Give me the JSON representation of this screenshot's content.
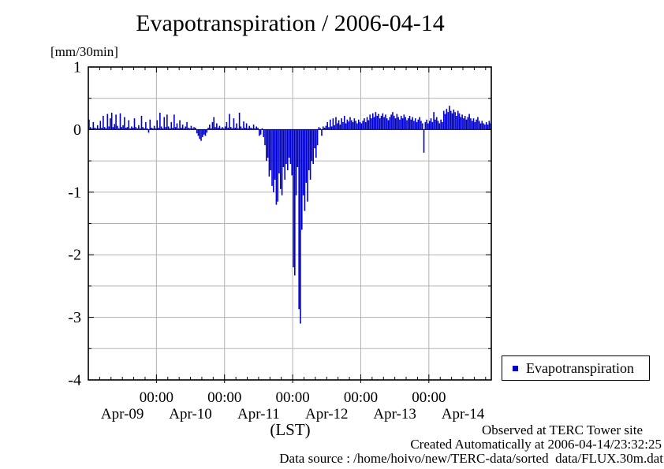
{
  "title": "Evapotranspiration / 2006-04-14",
  "legend": {
    "label": "Evapotranspiration",
    "marker_color": "#0000cc"
  },
  "footer": {
    "line1": "Observed at TERC Tower site",
    "line2": "Created Automatically at 2006-04-14/23:32:25",
    "line3": "Data source : /home/hoivo/new/TERC-data/sorted  data/FLUX.30m.dat"
  },
  "chart_data": {
    "type": "bar",
    "title": "Evapotranspiration / 2006-04-14",
    "ylabel": "[mm/30min]",
    "xlabel": "(LST)",
    "ylim": [
      -4,
      1
    ],
    "y_tick_values": [
      1,
      0,
      -1,
      -2,
      -3,
      -4
    ],
    "y_tick_labels": [
      "1",
      "0",
      "-1",
      "-2",
      "-3",
      "-4"
    ],
    "x_major_tick_labels": [
      "00:00",
      "00:00",
      "00:00",
      "00:00",
      "00:00"
    ],
    "x_day_labels": [
      "Apr-09",
      "Apr-10",
      "Apr-11",
      "Apr-12",
      "Apr-13",
      "Apr-14"
    ],
    "grid": true,
    "legend_position": "outside-bottom-right",
    "bar_color": "#0000cc",
    "grid_color": "#b3b3b3",
    "start": "2006-04-09 00:00",
    "interval_minutes": 30,
    "points_per_day": 48,
    "values": [
      0.16,
      0.04,
      0.02,
      0.12,
      0.03,
      0.02,
      0.07,
      0.02,
      0.14,
      0.03,
      0.22,
      0.04,
      0.02,
      0.25,
      0.05,
      0.18,
      0.27,
      0.04,
      0.09,
      0.24,
      0.06,
      0.02,
      0.26,
      0.04,
      0.07,
      0.2,
      0.03,
      0.04,
      0.15,
      0.02,
      0.05,
      0.03,
      0.18,
      0.04,
      0.02,
      0.07,
      0.02,
      0.22,
      0.04,
      0.02,
      0.12,
      0.02,
      -0.05,
      0.16,
      0.03,
      0.02,
      0.06,
      0.02,
      0.15,
      0.03,
      0.27,
      0.05,
      0.02,
      0.2,
      0.04,
      0.24,
      0.05,
      0.02,
      0.12,
      0.03,
      0.24,
      0.04,
      0.1,
      0.02,
      0.15,
      0.03,
      0.08,
      0.02,
      0.05,
      0.12,
      0.03,
      0.02,
      0.06,
      0.02,
      0.04,
      0.03,
      -0.06,
      -0.1,
      -0.15,
      -0.18,
      -0.12,
      -0.08,
      -0.1,
      -0.05,
      0.03,
      0.08,
      0.02,
      0.12,
      0.2,
      0.04,
      0.1,
      0.03,
      0.06,
      0.02,
      0.04,
      0.02,
      0.05,
      0.12,
      0.03,
      0.25,
      0.04,
      0.02,
      0.18,
      0.03,
      0.1,
      0.02,
      0.27,
      0.05,
      0.02,
      0.13,
      0.03,
      0.1,
      0.02,
      0.06,
      0.03,
      0.02,
      0.08,
      0.02,
      0.05,
      0.03,
      -0.1,
      -0.08,
      0.02,
      -0.12,
      -0.25,
      -0.5,
      -0.45,
      -0.75,
      -0.65,
      -0.9,
      -1.0,
      -0.8,
      -1.2,
      -1.15,
      -0.7,
      -0.95,
      -1.05,
      -0.6,
      -0.8,
      -0.55,
      -0.65,
      -0.45,
      -0.55,
      -0.73,
      -2.2,
      -2.33,
      -1.05,
      -0.6,
      -2.87,
      -3.1,
      -1.6,
      -1.05,
      -1.3,
      -0.85,
      -1.15,
      -0.65,
      -0.8,
      -0.5,
      -0.55,
      -0.3,
      -0.45,
      -0.25,
      0.04,
      0.02,
      -0.1,
      0.05,
      0.03,
      0.06,
      0.12,
      0.04,
      0.16,
      0.05,
      0.18,
      0.07,
      0.2,
      0.1,
      0.15,
      0.08,
      0.18,
      0.12,
      0.22,
      0.1,
      0.16,
      0.13,
      0.2,
      0.15,
      0.12,
      0.18,
      0.14,
      0.1,
      0.16,
      0.12,
      0.1,
      0.14,
      0.18,
      0.12,
      0.2,
      0.15,
      0.24,
      0.18,
      0.26,
      0.2,
      0.28,
      0.22,
      0.25,
      0.18,
      0.22,
      0.26,
      0.2,
      0.24,
      0.18,
      0.15,
      0.2,
      0.24,
      0.28,
      0.22,
      0.18,
      0.25,
      0.2,
      0.16,
      0.22,
      0.18,
      0.24,
      0.2,
      0.15,
      0.18,
      0.22,
      0.16,
      0.2,
      0.14,
      0.18,
      0.12,
      0.16,
      0.2,
      0.14,
      0.1,
      -0.37,
      0.12,
      0.16,
      0.1,
      0.14,
      0.18,
      0.12,
      0.28,
      0.16,
      0.2,
      0.14,
      0.1,
      0.16,
      0.12,
      0.3,
      0.25,
      0.33,
      0.28,
      0.38,
      0.3,
      0.26,
      0.32,
      0.28,
      0.22,
      0.3,
      0.26,
      0.2,
      0.24,
      0.18,
      0.22,
      0.16,
      0.2,
      0.25,
      0.18,
      0.14,
      0.18,
      0.12,
      0.16,
      0.2,
      0.14,
      0.1,
      0.14,
      0.1,
      0.08,
      0.12,
      0.08,
      0.14,
      0.1
    ]
  }
}
